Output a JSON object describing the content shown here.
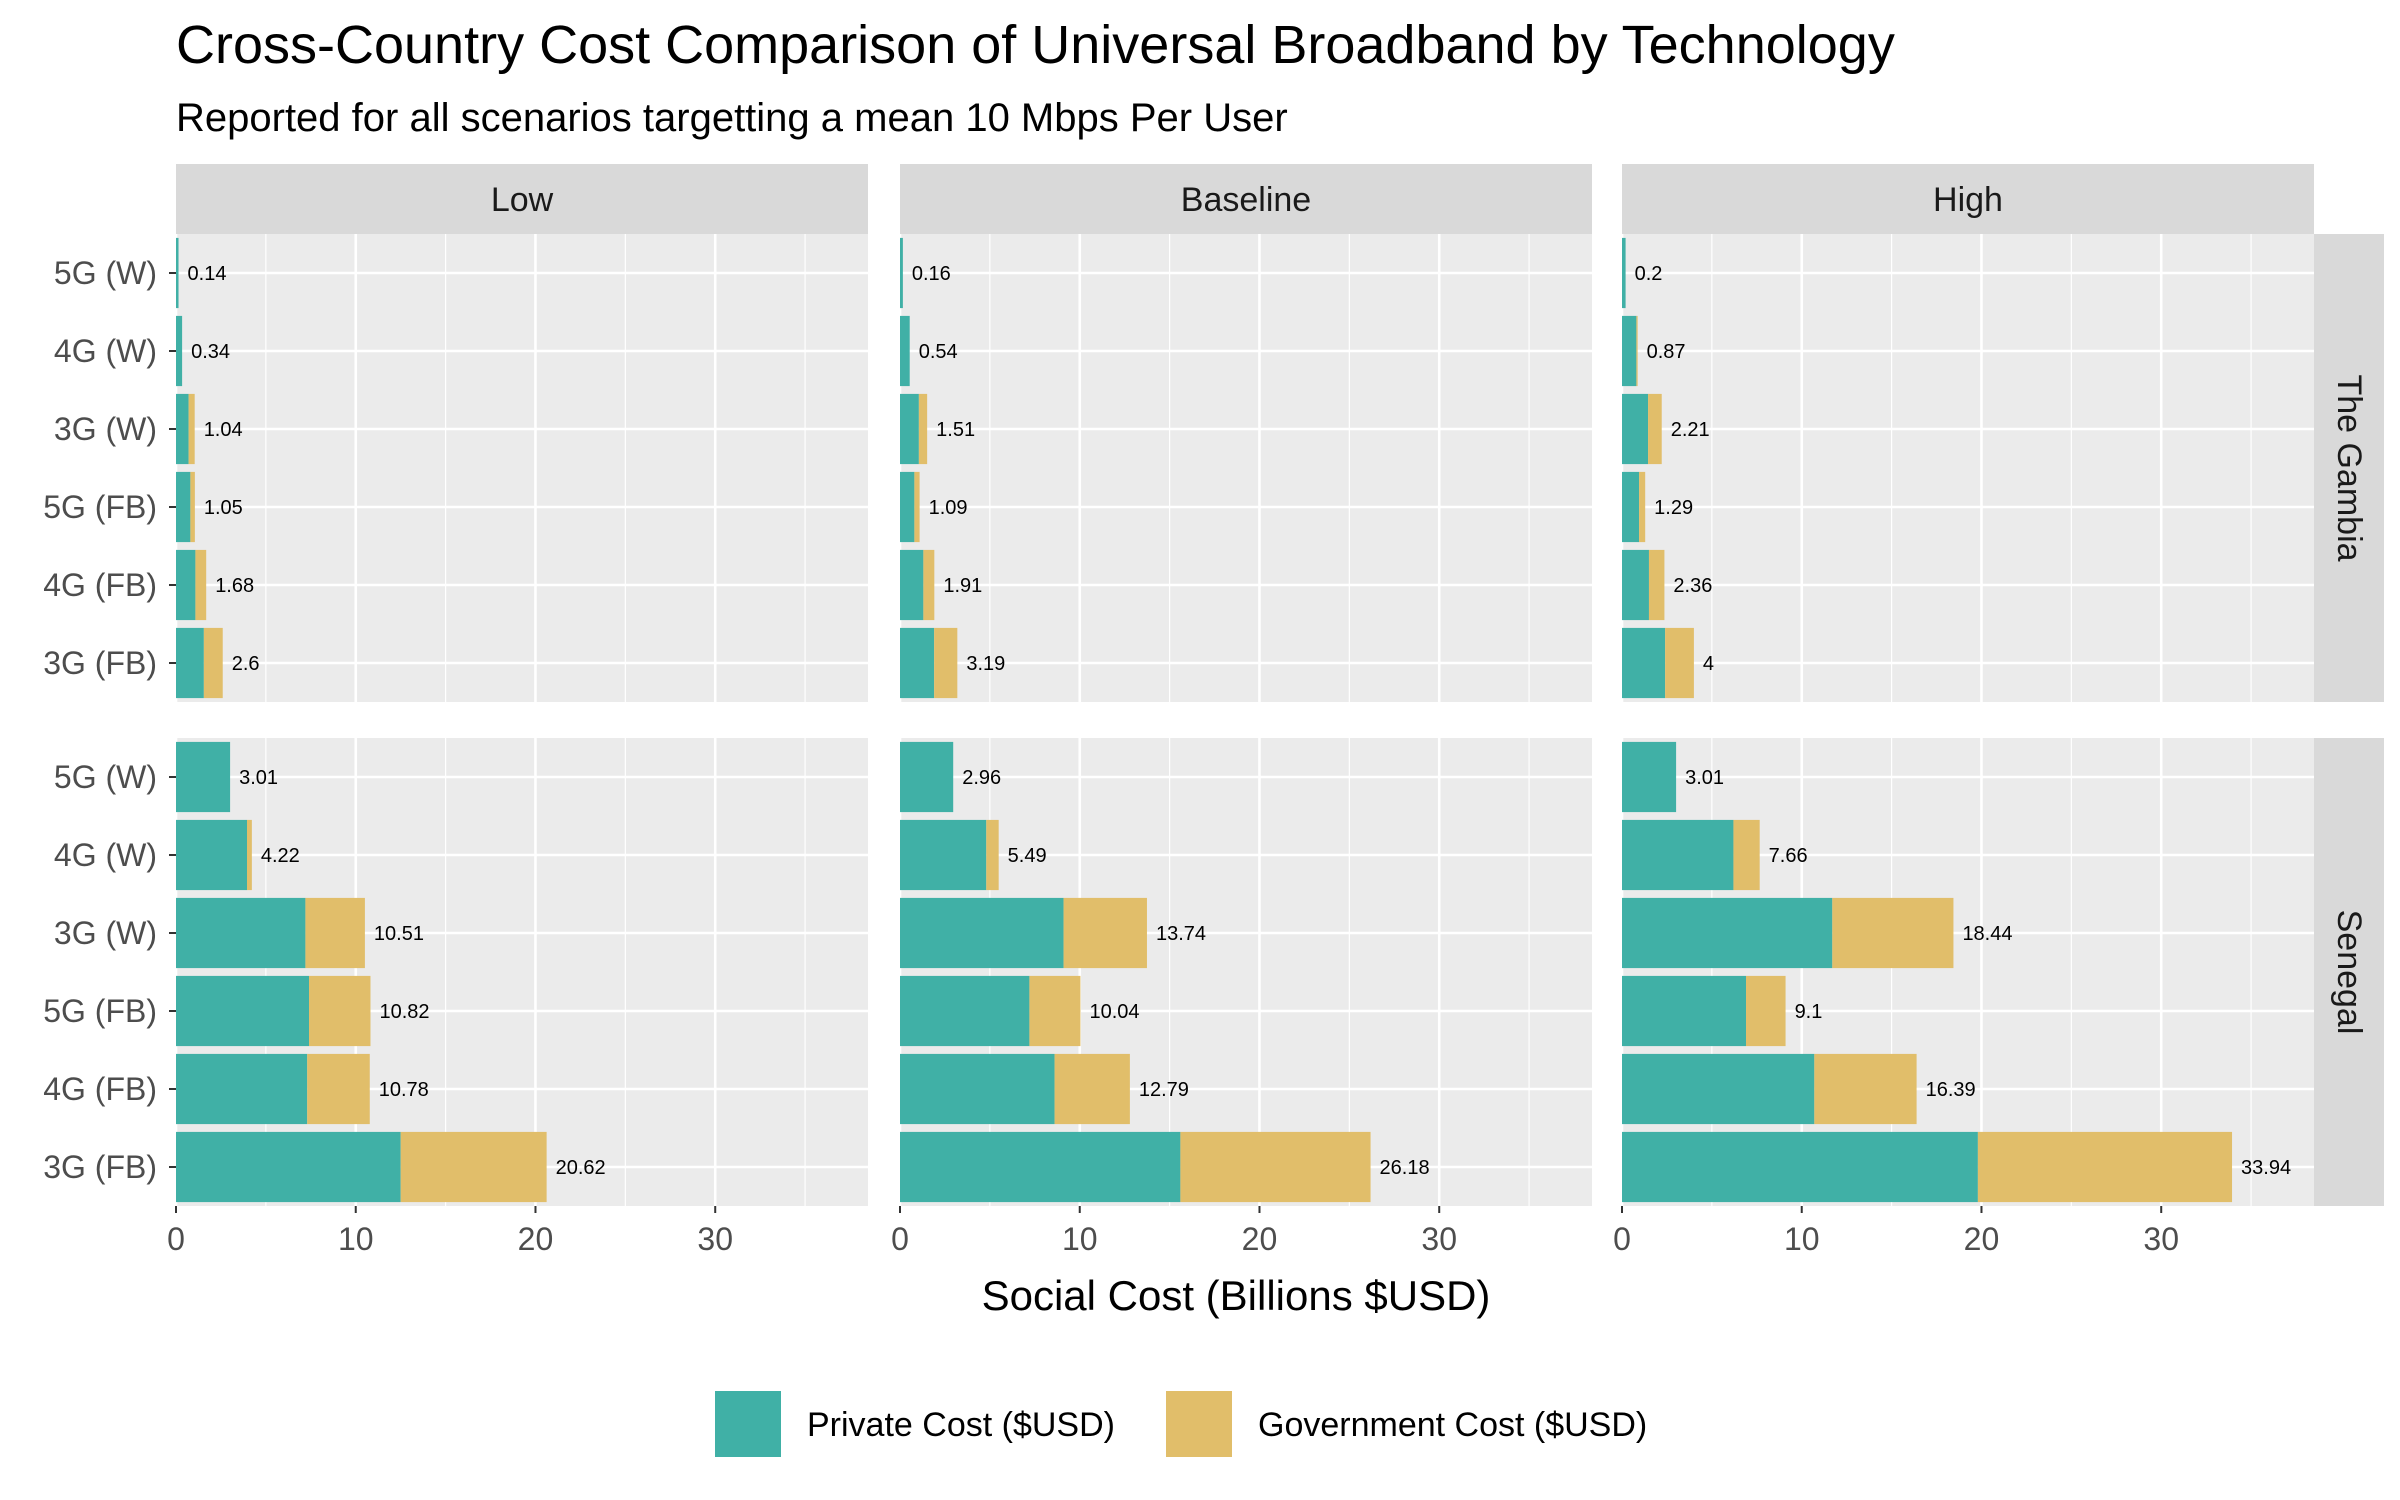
{
  "chart_data": {
    "type": "bar",
    "orientation": "horizontal",
    "stacked": true,
    "title": "Cross-Country Cost Comparison of Universal Broadband by Technology",
    "subtitle": "Reported for all scenarios targetting a mean 10 Mbps Per User",
    "xlabel": "Social Cost (Billions $USD)",
    "ylabel": "",
    "xlim": [
      0,
      38.5
    ],
    "xticks": [
      0,
      10,
      20,
      30
    ],
    "grid": true,
    "legend_position": "bottom",
    "categories": [
      "5G (W)",
      "4G (W)",
      "3G (W)",
      "5G (FB)",
      "4G (FB)",
      "3G (FB)"
    ],
    "columns": [
      "Low",
      "Baseline",
      "High"
    ],
    "rows": [
      "The Gambia",
      "Senegal"
    ],
    "series_names": [
      "Private Cost ($USD)",
      "Government Cost ($USD)"
    ],
    "colors": {
      "private": "#40b0a6",
      "government": "#e1be6a",
      "panel": "#ebebeb",
      "strip": "#d9d9d9",
      "grid": "#ffffff"
    },
    "panels": [
      {
        "row": "The Gambia",
        "column": "Low",
        "private": [
          0.14,
          0.34,
          0.7,
          0.8,
          1.08,
          1.55
        ],
        "government": [
          0.0,
          0.0,
          0.34,
          0.25,
          0.6,
          1.05
        ],
        "totals": [
          "0.14",
          "0.34",
          "1.04",
          "1.05",
          "1.68",
          "2.6"
        ]
      },
      {
        "row": "The Gambia",
        "column": "Baseline",
        "private": [
          0.16,
          0.54,
          1.05,
          0.8,
          1.3,
          1.9
        ],
        "government": [
          0.0,
          0.0,
          0.46,
          0.29,
          0.61,
          1.29
        ],
        "totals": [
          "0.16",
          "0.54",
          "1.51",
          "1.09",
          "1.91",
          "3.19"
        ]
      },
      {
        "row": "The Gambia",
        "column": "High",
        "private": [
          0.2,
          0.8,
          1.45,
          0.95,
          1.5,
          2.4
        ],
        "government": [
          0.0,
          0.07,
          0.76,
          0.34,
          0.86,
          1.6
        ],
        "totals": [
          "0.2",
          "0.87",
          "2.21",
          "1.29",
          "2.36",
          "4"
        ]
      },
      {
        "row": "Senegal",
        "column": "Low",
        "private": [
          3.01,
          3.95,
          7.2,
          7.4,
          7.3,
          12.5
        ],
        "government": [
          0.0,
          0.27,
          3.31,
          3.42,
          3.48,
          8.12
        ],
        "totals": [
          "3.01",
          "4.22",
          "10.51",
          "10.82",
          "10.78",
          "20.62"
        ]
      },
      {
        "row": "Senegal",
        "column": "Baseline",
        "private": [
          2.96,
          4.8,
          9.1,
          7.2,
          8.6,
          15.6
        ],
        "government": [
          0.0,
          0.69,
          4.64,
          2.84,
          4.19,
          10.58
        ],
        "totals": [
          "2.96",
          "5.49",
          "13.74",
          "10.04",
          "12.79",
          "26.18"
        ]
      },
      {
        "row": "Senegal",
        "column": "High",
        "private": [
          3.01,
          6.2,
          11.7,
          6.9,
          10.7,
          19.8
        ],
        "government": [
          0.0,
          1.46,
          6.74,
          2.2,
          5.69,
          14.14
        ],
        "totals": [
          "3.01",
          "7.66",
          "18.44",
          "9.1",
          "16.39",
          "33.94"
        ]
      }
    ]
  }
}
